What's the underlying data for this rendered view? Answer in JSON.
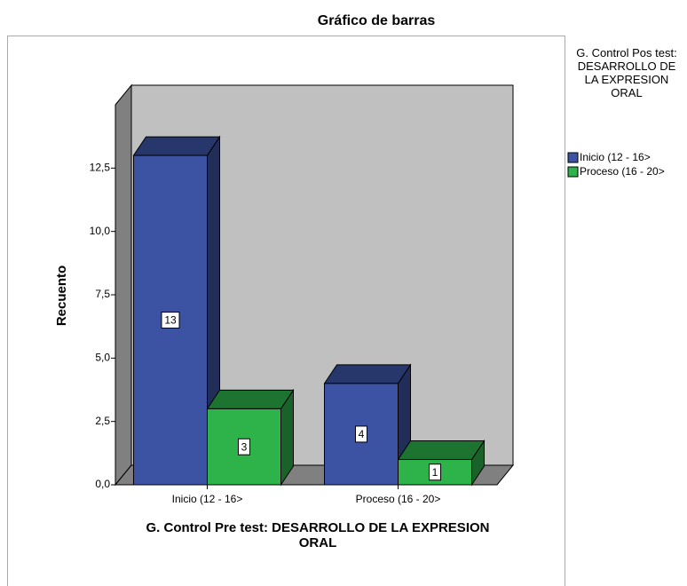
{
  "chart_data": {
    "type": "bar3d",
    "title": "Gráfico de barras",
    "categories": [
      "Inicio (12 - 16>",
      "Proceso (16 - 20>"
    ],
    "series": [
      {
        "name": "Inicio (12 - 16>",
        "color": "#3c53a4",
        "values": [
          13,
          4
        ]
      },
      {
        "name": "Proceso (16 - 20>",
        "color": "#2db34a",
        "values": [
          3,
          1
        ]
      }
    ],
    "ylabel": "Recuento",
    "xlabel": "G. Control Pre test: DESARROLLO DE LA EXPRESION ORAL",
    "legend_title": "G. Control Pos test: DESARROLLO DE LA EXPRESION ORAL",
    "legend": "right",
    "ylim": [
      0,
      15
    ],
    "yticks": [
      {
        "value": 0,
        "label": "0,0"
      },
      {
        "value": 2.5,
        "label": "2,5"
      },
      {
        "value": 5,
        "label": "5,0"
      },
      {
        "value": 7.5,
        "label": "7,5"
      },
      {
        "value": 10,
        "label": "10,0"
      },
      {
        "value": 12.5,
        "label": "12,5"
      }
    ]
  }
}
